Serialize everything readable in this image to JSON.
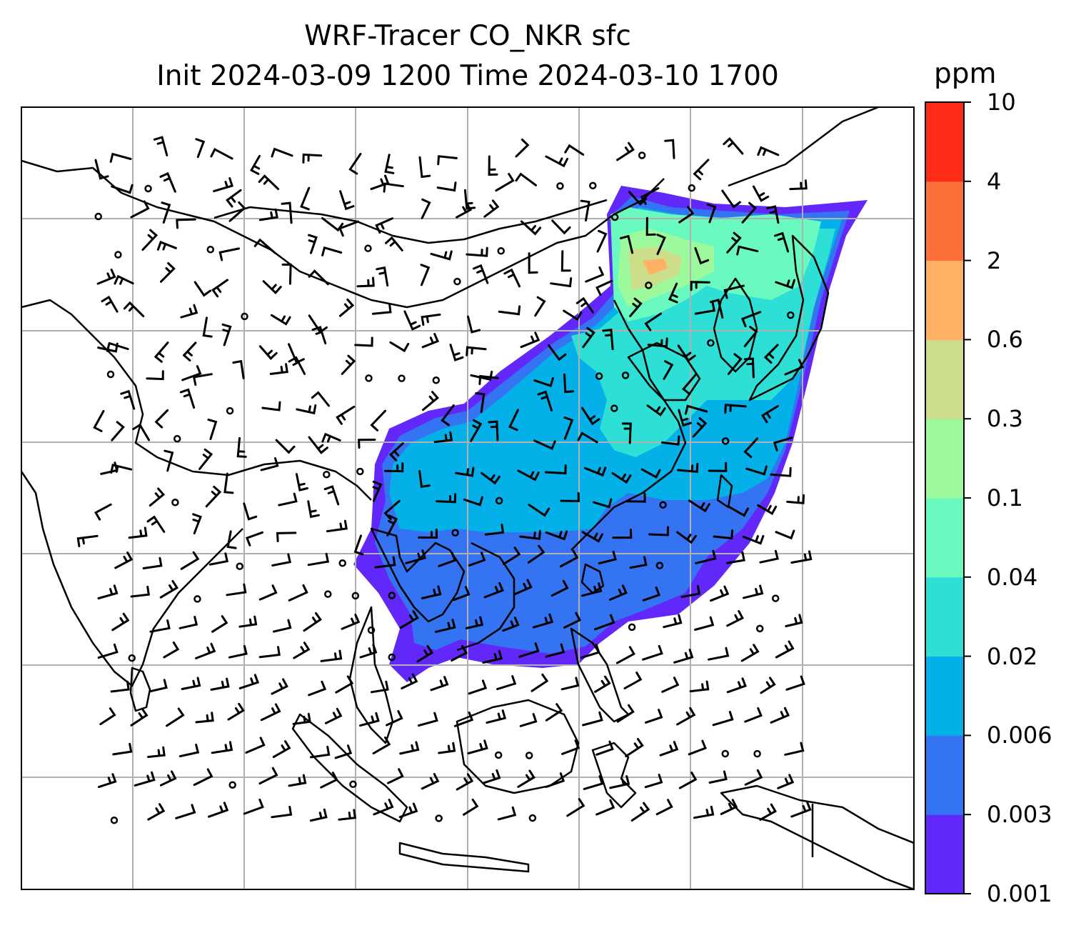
{
  "title": "WRF-Tracer CO_NKR sfc",
  "subtitle": "Init 2024-03-09 1200 Time 2024-03-10 1700",
  "colorbar": {
    "unit": "ppm",
    "levels": [
      "0.001",
      "0.003",
      "0.006",
      "0.02",
      "0.04",
      "0.1",
      "0.3",
      "0.6",
      "2",
      "4",
      "10"
    ],
    "colors": [
      "#6228fa",
      "#3474f2",
      "#04b0e8",
      "#2ddfd5",
      "#6afac0",
      "#9dfa9c",
      "#ccde8a",
      "#feb064",
      "#fe7039",
      "#fe2c17"
    ]
  },
  "map": {
    "gridlines": true,
    "land_outline_color": "#000000",
    "gridline_color": "#b0b0b0",
    "plume_colors": {
      "lowest": "#6228fa",
      "low": "#3474f2",
      "mid": "#04b0e8",
      "mid_high": "#2ddfd5",
      "high": "#6afac0",
      "higher": "#9dfa9c",
      "peak": "#ccde8a",
      "max": "#feb064"
    },
    "wind_barb_color": "#000000"
  }
}
